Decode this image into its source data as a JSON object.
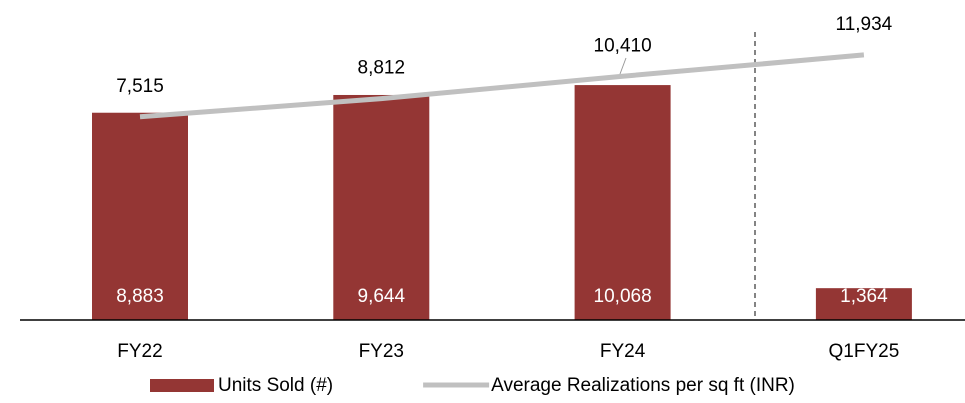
{
  "chart_data": {
    "type": "bar_line",
    "categories": [
      "FY22",
      "FY23",
      "FY24",
      "Q1FY25"
    ],
    "series": [
      {
        "name": "Units Sold (#)",
        "type": "bar",
        "color": "#943634",
        "values": [
          8883,
          9644,
          10068,
          1364
        ],
        "value_labels": [
          "8,883",
          "9,644",
          "10,068",
          "1,364"
        ]
      },
      {
        "name": "Average Realizations per sq ft (INR)",
        "type": "line",
        "axis": "y2",
        "color": "#c0c0c0",
        "values": [
          7515,
          8812,
          10410,
          11934
        ],
        "value_labels": [
          "7,515",
          "8,812",
          "10,410",
          "11,934"
        ]
      }
    ],
    "ylim": [
      0,
      12000
    ],
    "y2lim": [
      -7000,
      13000
    ],
    "legend": "bottom"
  }
}
